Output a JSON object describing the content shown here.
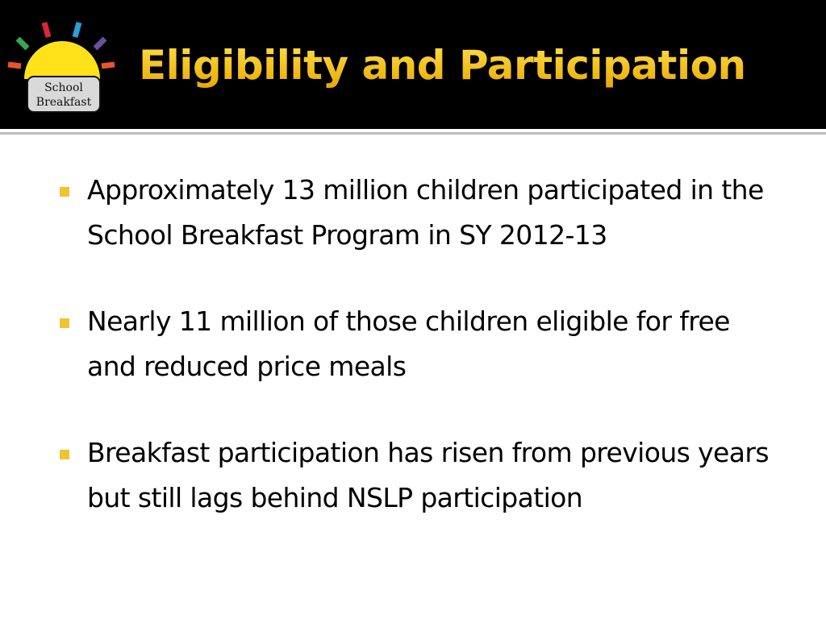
{
  "header": {
    "logo": {
      "line1": "School",
      "line2": "Breakfast"
    },
    "title": "Eligibility and Participation"
  },
  "bullets": [
    "Approximately 13 million children participated in the School Breakfast Program in SY 2012-13",
    "Nearly 11 million of those children eligible for free and reduced price meals",
    "Breakfast participation has risen from previous years but still lags behind NSLP participation"
  ]
}
